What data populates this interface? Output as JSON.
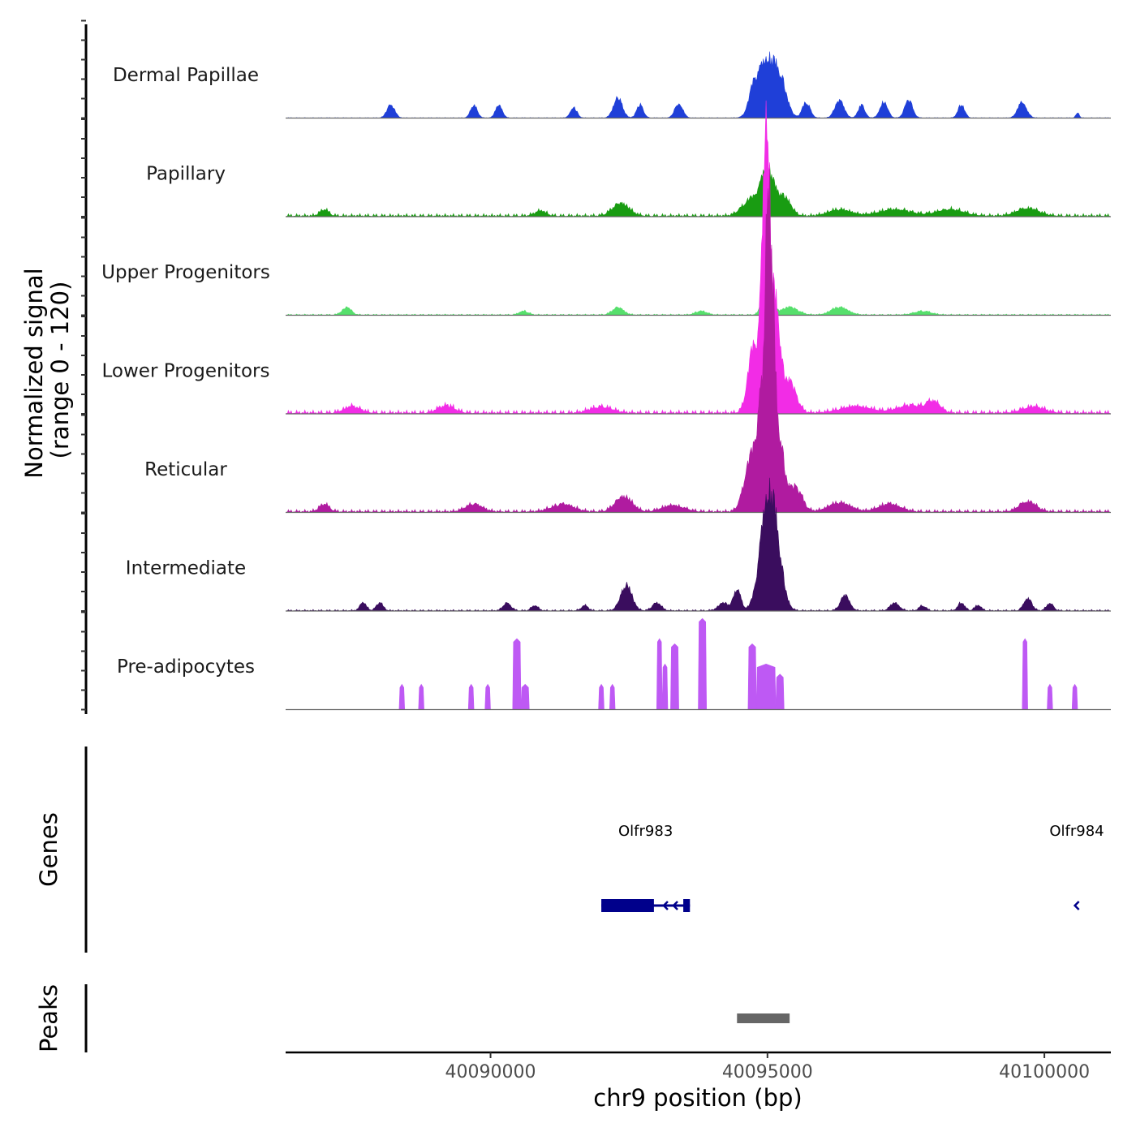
{
  "chart_data": {
    "type": "coverage-tracks",
    "chromosome": "chr9",
    "region": [
      40086300,
      40101200
    ],
    "y_axis_title_line1": "Normalized signal",
    "y_axis_title_line2": "(range 0 - 120)",
    "y_range": [
      0,
      120
    ],
    "x_axis_title": "chr9 position (bp)",
    "x_ticks": [
      40090000,
      40095000,
      40100000
    ],
    "x_tick_labels": [
      "40090000",
      "40095000",
      "40100000"
    ],
    "tracks": [
      {
        "name": "Dermal Papillae",
        "color": "#1f3fd8",
        "peaks": [
          [
            40088200,
            5,
            70
          ],
          [
            40089700,
            5,
            60
          ],
          [
            40090150,
            5,
            60
          ],
          [
            40091500,
            4,
            60
          ],
          [
            40092300,
            8,
            80
          ],
          [
            40092700,
            5,
            60
          ],
          [
            40093400,
            6,
            70
          ],
          [
            40094750,
            8,
            90
          ],
          [
            40095000,
            22,
            160
          ],
          [
            40095250,
            10,
            110
          ],
          [
            40095700,
            6,
            70
          ],
          [
            40096300,
            7,
            80
          ],
          [
            40096700,
            5,
            60
          ],
          [
            40097100,
            6,
            70
          ],
          [
            40097550,
            7,
            70
          ],
          [
            40098500,
            5,
            60
          ],
          [
            40099600,
            6,
            80
          ],
          [
            40100600,
            2,
            30
          ]
        ],
        "baseline": 0.2
      },
      {
        "name": "Papillary",
        "color": "#199c12",
        "peaks": [
          [
            40087000,
            2.5,
            80
          ],
          [
            40090900,
            2,
            100
          ],
          [
            40092350,
            5,
            150
          ],
          [
            40094700,
            6,
            160
          ],
          [
            40095000,
            17,
            120
          ],
          [
            40095300,
            7,
            120
          ],
          [
            40096300,
            2.5,
            200
          ],
          [
            40097300,
            2.5,
            300
          ],
          [
            40098300,
            2.5,
            250
          ],
          [
            40099700,
            3,
            200
          ]
        ],
        "baseline": 1.2
      },
      {
        "name": "Upper Progenitors",
        "color": "#56df6c",
        "peaks": [
          [
            40087400,
            3,
            80
          ],
          [
            40090600,
            1.5,
            80
          ],
          [
            40092300,
            3,
            100
          ],
          [
            40093800,
            1.5,
            100
          ],
          [
            40095000,
            15,
            80
          ],
          [
            40095400,
            3,
            150
          ],
          [
            40096300,
            3,
            150
          ],
          [
            40097800,
            1.5,
            150
          ]
        ],
        "baseline": 0.5
      },
      {
        "name": "Lower Progenitors",
        "color": "#f22ce6",
        "peaks": [
          [
            40094750,
            25,
            100
          ],
          [
            40094950,
            58,
            70
          ],
          [
            40095000,
            60,
            55
          ],
          [
            40095150,
            40,
            80
          ],
          [
            40095400,
            12,
            120
          ],
          [
            40087500,
            2.5,
            150
          ],
          [
            40089200,
            3,
            150
          ],
          [
            40092000,
            2.5,
            200
          ],
          [
            40096600,
            2.5,
            300
          ],
          [
            40097600,
            3,
            250
          ],
          [
            40098000,
            4,
            120
          ],
          [
            40099800,
            2.5,
            200
          ]
        ],
        "baseline": 1.5
      },
      {
        "name": "Reticular",
        "color": "#b01ba0",
        "peaks": [
          [
            40094700,
            20,
            120
          ],
          [
            40094900,
            40,
            80
          ],
          [
            40095000,
            88,
            40
          ],
          [
            40095080,
            70,
            50
          ],
          [
            40095200,
            30,
            90
          ],
          [
            40095500,
            10,
            120
          ],
          [
            40092400,
            6,
            150
          ],
          [
            40087000,
            3,
            90
          ],
          [
            40089700,
            3,
            150
          ],
          [
            40091300,
            3,
            200
          ],
          [
            40093300,
            2.5,
            200
          ],
          [
            40096300,
            3.5,
            200
          ],
          [
            40097200,
            3,
            200
          ],
          [
            40099700,
            4,
            150
          ]
        ],
        "baseline": 1.2
      },
      {
        "name": "Intermediate",
        "color": "#3a0d5e",
        "peaks": [
          [
            40094980,
            35,
            130
          ],
          [
            40095150,
            22,
            120
          ],
          [
            40094450,
            8,
            70
          ],
          [
            40094200,
            3,
            90
          ],
          [
            40092450,
            10,
            100
          ],
          [
            40093000,
            3,
            80
          ],
          [
            40096400,
            6,
            80
          ],
          [
            40097300,
            3,
            80
          ],
          [
            40099700,
            5,
            70
          ],
          [
            40100100,
            3,
            60
          ],
          [
            40098500,
            3,
            60
          ],
          [
            40090300,
            3,
            70
          ],
          [
            40088000,
            3,
            60
          ],
          [
            40087700,
            3,
            60
          ],
          [
            40090800,
            2,
            60
          ],
          [
            40091700,
            2,
            60
          ],
          [
            40097800,
            2,
            60
          ],
          [
            40098800,
            2,
            60
          ]
        ],
        "baseline": 0.6
      },
      {
        "name": "Pre-adipocytes",
        "color": "#be59f4",
        "blocks": [
          [
            40088350,
            40088450,
            10
          ],
          [
            40088700,
            40088800,
            10
          ],
          [
            40089600,
            40089700,
            10
          ],
          [
            40089900,
            40090000,
            10
          ],
          [
            40090400,
            40090550,
            28
          ],
          [
            40090550,
            40090700,
            10
          ],
          [
            40091950,
            40092050,
            10
          ],
          [
            40092150,
            40092250,
            10
          ],
          [
            40093000,
            40093100,
            28
          ],
          [
            40093100,
            40093200,
            18
          ],
          [
            40093250,
            40093400,
            26
          ],
          [
            40093750,
            40093900,
            36
          ],
          [
            40094650,
            40094800,
            26
          ],
          [
            40094800,
            40095150,
            18
          ],
          [
            40095150,
            40095300,
            14
          ],
          [
            40099600,
            40099700,
            28
          ],
          [
            40100050,
            40100150,
            10
          ],
          [
            40100500,
            40100600,
            10
          ]
        ]
      }
    ],
    "genes_track_label": "Genes",
    "genes": [
      {
        "name": "Olfr983",
        "strand": "-",
        "start": 40092000,
        "end": 40093600,
        "exons": [
          [
            40092000,
            40092950
          ],
          [
            40093480,
            40093600
          ]
        ],
        "color": "#00008b"
      },
      {
        "name": "Olfr984",
        "strand": "-",
        "start": 40100550,
        "end": 40100620,
        "exons": [],
        "color": "#00008b"
      }
    ],
    "peaks_track_label": "Peaks",
    "peak_regions": [
      [
        40094450,
        40095400
      ]
    ],
    "peak_color": "#666666"
  }
}
